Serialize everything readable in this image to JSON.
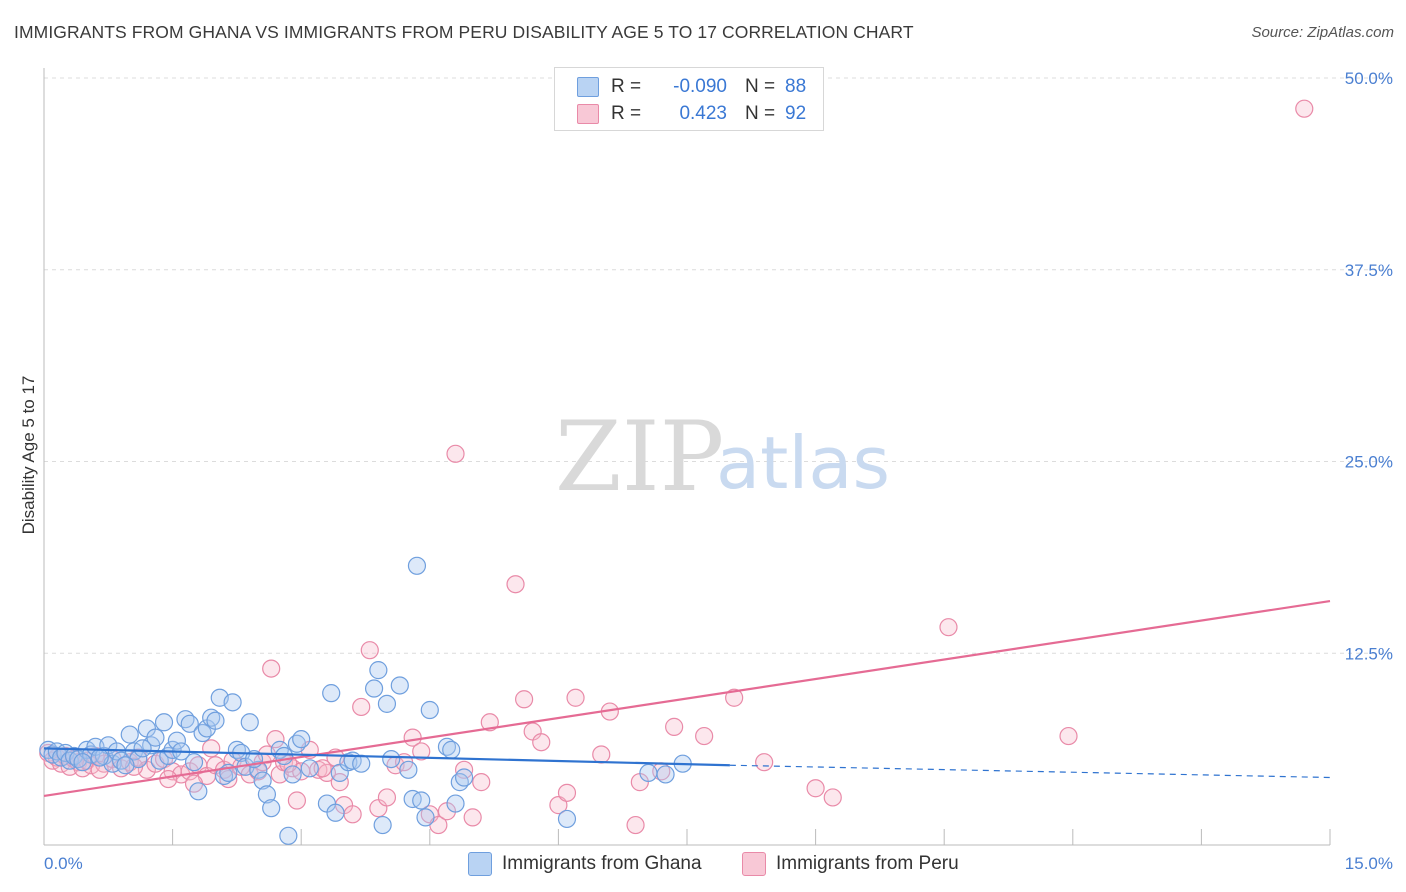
{
  "header": {
    "title": "IMMIGRANTS FROM GHANA VS IMMIGRANTS FROM PERU DISABILITY AGE 5 TO 17 CORRELATION CHART",
    "source": "Source: ZipAtlas.com"
  },
  "watermark": {
    "zip": "ZIP",
    "atlas": "atlas"
  },
  "legend": {
    "rows": [
      {
        "r_label": "R =",
        "r_value": "-0.090",
        "n_label": "N =",
        "n_value": "88"
      },
      {
        "r_label": "R =",
        "r_value": "0.423",
        "n_label": "N =",
        "n_value": "92"
      }
    ]
  },
  "bottom_legend": [
    "Immigrants from Ghana",
    "Immigrants from Peru"
  ],
  "colors": {
    "ghana_fill": "#a9c8f0",
    "ghana_stroke": "#6f9fde",
    "ghana_line": "#2f73d0",
    "peru_fill": "#f6b9cb",
    "peru_stroke": "#e98aa8",
    "peru_line": "#e56b94",
    "axis_label": "#4a7fd1",
    "grid": "#dcdcdc"
  },
  "chart_data": {
    "type": "scatter",
    "title": "IMMIGRANTS FROM GHANA VS IMMIGRANTS FROM PERU DISABILITY AGE 5 TO 17 CORRELATION CHART",
    "xlabel": "",
    "ylabel": "Disability Age 5 to 17",
    "xlim": [
      0,
      15
    ],
    "ylim": [
      0,
      50
    ],
    "x_tick_labels": [
      "0.0%",
      "15.0%"
    ],
    "y_ticks": [
      12.5,
      25.0,
      37.5,
      50.0
    ],
    "y_tick_labels": [
      "12.5%",
      "25.0%",
      "37.5%",
      "50.0%"
    ],
    "grid": true,
    "legend_position": "top-center",
    "series": [
      {
        "name": "Immigrants from Ghana",
        "R": -0.09,
        "N": 88,
        "trend": {
          "x0": 0,
          "y0": 6.3,
          "x1": 8.0,
          "y1": 5.2,
          "dashed_to_x": 15,
          "dashed_to_y": 4.4
        },
        "points": [
          [
            0.05,
            6.2
          ],
          [
            0.1,
            5.9
          ],
          [
            0.15,
            6.1
          ],
          [
            0.2,
            5.7
          ],
          [
            0.25,
            6.0
          ],
          [
            0.3,
            5.5
          ],
          [
            0.35,
            5.8
          ],
          [
            0.4,
            5.6
          ],
          [
            0.5,
            6.2
          ],
          [
            0.55,
            5.9
          ],
          [
            0.6,
            6.4
          ],
          [
            0.7,
            5.8
          ],
          [
            0.75,
            6.5
          ],
          [
            0.8,
            5.3
          ],
          [
            0.85,
            6.1
          ],
          [
            0.9,
            5.5
          ],
          [
            1.0,
            7.2
          ],
          [
            1.05,
            6.1
          ],
          [
            1.1,
            5.6
          ],
          [
            1.2,
            7.6
          ],
          [
            1.25,
            6.5
          ],
          [
            1.3,
            7.0
          ],
          [
            1.35,
            5.5
          ],
          [
            1.4,
            8.0
          ],
          [
            1.45,
            5.8
          ],
          [
            1.5,
            6.2
          ],
          [
            1.55,
            6.8
          ],
          [
            1.65,
            8.2
          ],
          [
            1.7,
            7.9
          ],
          [
            1.75,
            5.4
          ],
          [
            1.8,
            3.5
          ],
          [
            1.85,
            7.3
          ],
          [
            1.9,
            7.6
          ],
          [
            1.95,
            8.3
          ],
          [
            2.0,
            8.1
          ],
          [
            2.05,
            9.6
          ],
          [
            2.1,
            4.5
          ],
          [
            2.15,
            4.7
          ],
          [
            2.2,
            9.3
          ],
          [
            2.25,
            6.2
          ],
          [
            2.3,
            6.0
          ],
          [
            2.35,
            5.1
          ],
          [
            2.4,
            8.0
          ],
          [
            2.5,
            4.9
          ],
          [
            2.55,
            4.2
          ],
          [
            2.6,
            3.3
          ],
          [
            2.65,
            2.4
          ],
          [
            2.75,
            6.2
          ],
          [
            2.8,
            5.8
          ],
          [
            2.85,
            0.6
          ],
          [
            2.9,
            4.6
          ],
          [
            2.95,
            6.6
          ],
          [
            3.0,
            6.9
          ],
          [
            3.3,
            2.7
          ],
          [
            3.35,
            9.9
          ],
          [
            3.4,
            2.1
          ],
          [
            3.45,
            4.7
          ],
          [
            3.55,
            5.4
          ],
          [
            3.6,
            5.5
          ],
          [
            3.85,
            10.2
          ],
          [
            3.9,
            11.4
          ],
          [
            3.95,
            1.3
          ],
          [
            4.0,
            9.2
          ],
          [
            4.05,
            5.6
          ],
          [
            4.15,
            10.4
          ],
          [
            4.3,
            3.0
          ],
          [
            4.35,
            18.2
          ],
          [
            4.4,
            2.9
          ],
          [
            4.45,
            1.8
          ],
          [
            4.5,
            8.8
          ],
          [
            4.7,
            6.4
          ],
          [
            4.75,
            6.2
          ],
          [
            4.85,
            4.1
          ],
          [
            4.9,
            4.4
          ],
          [
            4.8,
            2.7
          ],
          [
            6.1,
            1.7
          ],
          [
            7.05,
            4.7
          ],
          [
            7.25,
            4.6
          ],
          [
            7.45,
            5.3
          ],
          [
            0.45,
            5.4
          ],
          [
            0.65,
            5.7
          ],
          [
            0.95,
            5.2
          ],
          [
            1.15,
            6.3
          ],
          [
            1.6,
            6.1
          ],
          [
            2.45,
            5.6
          ],
          [
            3.1,
            5.0
          ],
          [
            3.7,
            5.3
          ],
          [
            4.25,
            4.9
          ]
        ]
      },
      {
        "name": "Immigrants from Peru",
        "R": 0.423,
        "N": 92,
        "trend": {
          "x0": 0,
          "y0": 3.2,
          "x1": 15,
          "y1": 15.9
        },
        "points": [
          [
            0.05,
            6.0
          ],
          [
            0.1,
            5.5
          ],
          [
            0.15,
            5.7
          ],
          [
            0.2,
            5.3
          ],
          [
            0.25,
            5.8
          ],
          [
            0.3,
            5.1
          ],
          [
            0.35,
            5.6
          ],
          [
            0.4,
            5.4
          ],
          [
            0.45,
            5.0
          ],
          [
            0.5,
            5.5
          ],
          [
            0.55,
            5.2
          ],
          [
            0.6,
            5.8
          ],
          [
            0.7,
            5.3
          ],
          [
            0.8,
            5.6
          ],
          [
            0.9,
            5.0
          ],
          [
            1.0,
            5.4
          ],
          [
            1.1,
            5.7
          ],
          [
            1.2,
            4.9
          ],
          [
            1.3,
            5.3
          ],
          [
            1.4,
            5.6
          ],
          [
            1.5,
            4.8
          ],
          [
            1.6,
            4.6
          ],
          [
            1.7,
            4.8
          ],
          [
            1.8,
            5.2
          ],
          [
            1.9,
            4.5
          ],
          [
            1.95,
            6.3
          ],
          [
            2.0,
            5.2
          ],
          [
            2.1,
            4.9
          ],
          [
            2.2,
            5.5
          ],
          [
            2.3,
            5.1
          ],
          [
            2.4,
            4.6
          ],
          [
            2.5,
            4.8
          ],
          [
            2.55,
            5.4
          ],
          [
            2.6,
            5.9
          ],
          [
            2.65,
            11.5
          ],
          [
            2.7,
            6.9
          ],
          [
            2.75,
            4.6
          ],
          [
            2.8,
            5.4
          ],
          [
            2.9,
            5.0
          ],
          [
            3.0,
            4.8
          ],
          [
            2.95,
            2.9
          ],
          [
            3.1,
            6.2
          ],
          [
            3.2,
            4.9
          ],
          [
            3.3,
            4.7
          ],
          [
            3.4,
            5.7
          ],
          [
            3.45,
            4.1
          ],
          [
            3.5,
            2.6
          ],
          [
            3.6,
            2.0
          ],
          [
            3.7,
            9.0
          ],
          [
            3.8,
            12.7
          ],
          [
            3.9,
            2.4
          ],
          [
            4.0,
            3.1
          ],
          [
            4.1,
            5.2
          ],
          [
            4.2,
            5.4
          ],
          [
            4.3,
            7.0
          ],
          [
            4.4,
            6.1
          ],
          [
            4.5,
            2.0
          ],
          [
            4.6,
            1.3
          ],
          [
            4.7,
            2.2
          ],
          [
            4.8,
            25.5
          ],
          [
            4.9,
            4.9
          ],
          [
            5.0,
            1.8
          ],
          [
            5.1,
            4.1
          ],
          [
            5.2,
            8.0
          ],
          [
            5.5,
            17.0
          ],
          [
            5.6,
            9.5
          ],
          [
            5.7,
            7.4
          ],
          [
            5.8,
            6.7
          ],
          [
            6.0,
            2.6
          ],
          [
            6.1,
            3.4
          ],
          [
            6.2,
            9.6
          ],
          [
            6.5,
            5.9
          ],
          [
            6.6,
            8.7
          ],
          [
            6.9,
            1.3
          ],
          [
            6.95,
            4.1
          ],
          [
            7.2,
            4.8
          ],
          [
            7.35,
            7.7
          ],
          [
            7.7,
            7.1
          ],
          [
            8.05,
            9.6
          ],
          [
            8.4,
            5.4
          ],
          [
            9.0,
            3.7
          ],
          [
            9.2,
            3.1
          ],
          [
            10.55,
            14.2
          ],
          [
            11.95,
            7.1
          ],
          [
            14.7,
            48.0
          ],
          [
            0.65,
            4.9
          ],
          [
            1.05,
            5.1
          ],
          [
            1.45,
            4.3
          ],
          [
            1.75,
            4.0
          ],
          [
            2.15,
            4.3
          ],
          [
            2.85,
            5.3
          ],
          [
            3.25,
            5.0
          ]
        ]
      }
    ]
  }
}
